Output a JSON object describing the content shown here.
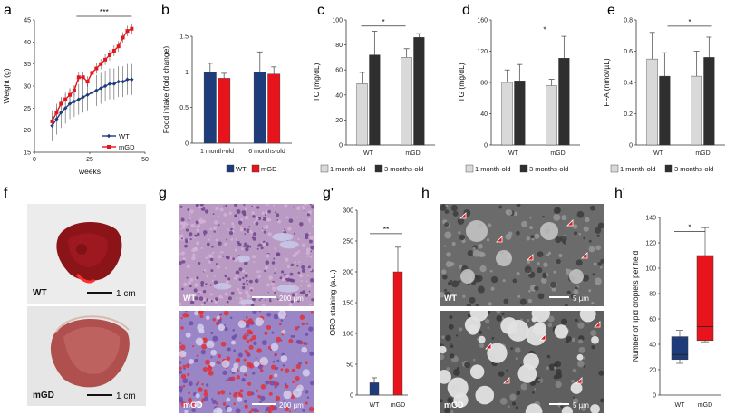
{
  "panel_labels": {
    "a": "a",
    "b": "b",
    "c": "c",
    "d": "d",
    "e": "e",
    "f": "f",
    "g": "g",
    "gp": "g'",
    "h": "h",
    "hp": "h'"
  },
  "colors": {
    "wt": "#1f3c7a",
    "mgd": "#e8141b",
    "light": "#d9d9d9",
    "dark": "#2f2f2f"
  },
  "chart_data": [
    {
      "id": "a",
      "type": "line",
      "xlabel": "weeks",
      "ylabel": "Weight (g)",
      "xlim": [
        0,
        50
      ],
      "ylim": [
        15,
        45
      ],
      "xticks": [
        "0",
        "25",
        "50"
      ],
      "yticks": [
        "15",
        "20",
        "25",
        "30",
        "35",
        "40",
        "45"
      ],
      "annotation": "***",
      "series": [
        {
          "name": "WT",
          "x": [
            8,
            10,
            12,
            14,
            16,
            18,
            20,
            22,
            24,
            26,
            28,
            30,
            32,
            34,
            36,
            38,
            40,
            42,
            44
          ],
          "y": [
            21,
            22.5,
            24,
            25,
            26,
            26.5,
            27,
            27.5,
            28,
            28.5,
            29,
            29.5,
            30,
            30.5,
            30.5,
            31,
            31,
            31.5,
            31.5
          ]
        },
        {
          "name": "mGD",
          "x": [
            8,
            10,
            12,
            14,
            16,
            18,
            20,
            22,
            24,
            26,
            28,
            30,
            32,
            34,
            36,
            38,
            40,
            42,
            44
          ],
          "y": [
            22,
            24,
            26,
            27,
            28,
            29,
            32,
            32,
            31,
            33,
            34,
            35,
            36,
            37,
            38,
            39,
            41,
            42.5,
            43
          ]
        }
      ]
    },
    {
      "id": "b",
      "type": "bar",
      "ylabel": "Food intake (fold change)",
      "ylim": [
        0,
        1.5
      ],
      "yticks": [
        "0",
        "0.5",
        "1",
        "1.5"
      ],
      "categories": [
        "1 month-old",
        "6 months-old"
      ],
      "series": [
        {
          "name": "WT",
          "values": [
            1.0,
            1.0
          ],
          "err": [
            0.12,
            0.28
          ]
        },
        {
          "name": "mGD",
          "values": [
            0.91,
            0.97
          ],
          "err": [
            0.07,
            0.1
          ]
        }
      ]
    },
    {
      "id": "c",
      "type": "bar",
      "ylabel": "TC (mg/dL)",
      "ylim": [
        0,
        100
      ],
      "yticks": [
        "0",
        "20",
        "40",
        "60",
        "80",
        "100"
      ],
      "categories": [
        "WT",
        "mGD"
      ],
      "annotation": "*",
      "series": [
        {
          "name": "1 month-old",
          "values": [
            49,
            70
          ],
          "err": [
            9,
            7
          ]
        },
        {
          "name": "3 months-old",
          "values": [
            72,
            86
          ],
          "err": [
            19,
            3
          ]
        }
      ]
    },
    {
      "id": "d",
      "type": "bar",
      "ylabel": "TG (mg/dL)",
      "ylim": [
        0,
        160
      ],
      "yticks": [
        "0",
        "40",
        "80",
        "120",
        "160"
      ],
      "categories": [
        "WT",
        "mGD"
      ],
      "annotation": "*",
      "series": [
        {
          "name": "1 month-old",
          "values": [
            80,
            76
          ],
          "err": [
            16,
            8
          ]
        },
        {
          "name": "3 months-old",
          "values": [
            82,
            111
          ],
          "err": [
            21,
            28
          ]
        }
      ]
    },
    {
      "id": "e",
      "type": "bar",
      "ylabel": "FFA (nmol/µL)",
      "ylim": [
        0,
        0.8
      ],
      "yticks": [
        "0",
        "0.2",
        "0.4",
        "0.6",
        "0.8"
      ],
      "categories": [
        "WT",
        "mGD"
      ],
      "annotation": "*",
      "series": [
        {
          "name": "1 month-old",
          "values": [
            0.55,
            0.44
          ],
          "err": [
            0.17,
            0.16
          ]
        },
        {
          "name": "3 months-old",
          "values": [
            0.44,
            0.56
          ],
          "err": [
            0.15,
            0.13
          ]
        }
      ]
    },
    {
      "id": "gp",
      "type": "bar",
      "ylabel": "ORO staining (a.u.)",
      "ylim": [
        0,
        300
      ],
      "yticks": [
        "0",
        "50",
        "100",
        "150",
        "200",
        "250",
        "300"
      ],
      "categories": [
        "WT",
        "mGD"
      ],
      "annotation": "**",
      "values": [
        20,
        200
      ],
      "err": [
        8,
        40
      ]
    },
    {
      "id": "hp",
      "type": "box",
      "ylabel": "Number of lipid droplets per field",
      "ylim": [
        0,
        140
      ],
      "yticks": [
        "0",
        "20",
        "40",
        "60",
        "80",
        "100",
        "120",
        "140"
      ],
      "categories": [
        "WT",
        "mGD"
      ],
      "annotation": "*",
      "boxes": [
        {
          "min": 25,
          "q1": 28,
          "median": 32,
          "q3": 46,
          "max": 51
        },
        {
          "min": 42,
          "q1": 43,
          "median": 54,
          "q3": 110,
          "max": 132
        }
      ]
    }
  ],
  "images": {
    "f_wt": {
      "label": "WT",
      "scale": "1 cm"
    },
    "f_mgd": {
      "label": "mGD",
      "scale": "1 cm"
    },
    "g_wt": {
      "label": "WT",
      "scale": "200 µm"
    },
    "g_mgd": {
      "label": "mGD",
      "scale": "200 µm"
    },
    "h_wt": {
      "label": "WT",
      "scale": "5 µm"
    },
    "h_mgd": {
      "label": "mGD",
      "scale": "5 µm"
    }
  }
}
